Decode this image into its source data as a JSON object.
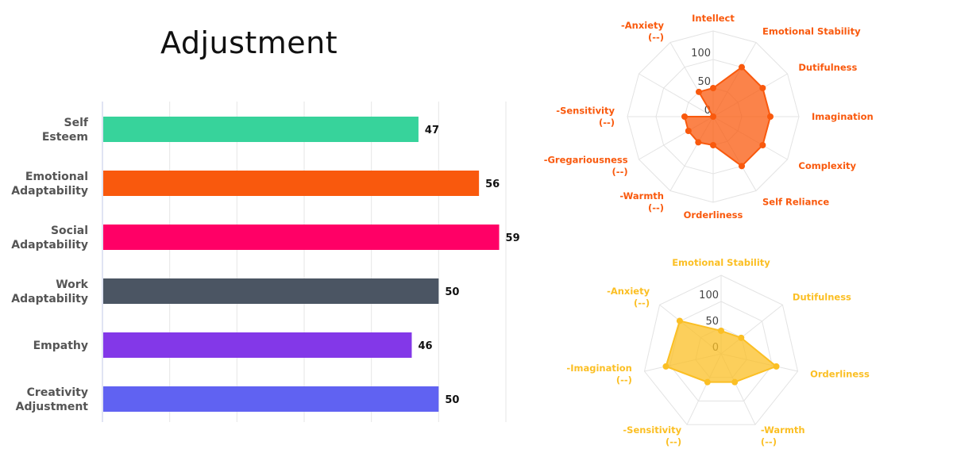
{
  "title": "Adjustment",
  "chart_data": [
    {
      "type": "bar",
      "orientation": "horizontal",
      "title": "Adjustment",
      "categories": [
        [
          "Self",
          "Esteem"
        ],
        [
          "Emotional",
          "Adaptability"
        ],
        [
          "Social",
          "Adaptability"
        ],
        [
          "Work",
          "Adaptability"
        ],
        [
          "Empathy"
        ],
        [
          "Creativity",
          "Adjustment"
        ]
      ],
      "values": [
        47,
        56,
        59,
        50,
        46,
        50
      ],
      "colors": [
        "#37d39b",
        "#f9590d",
        "#ff0066",
        "#4b5563",
        "#8338e8",
        "#6062f2"
      ],
      "xlim": [
        0,
        60
      ],
      "grid": true,
      "data_labels": true
    },
    {
      "type": "radar",
      "color": "#f9590d",
      "axes": [
        [
          "Intellect"
        ],
        [
          "Emotional Stability"
        ],
        [
          "Dutifulness"
        ],
        [
          "Imagination"
        ],
        [
          "Complexity"
        ],
        [
          "Self Reliance"
        ],
        [
          "Orderliness"
        ],
        [
          "-Warmth",
          "(--)"
        ],
        [
          "-Gregariousness",
          "(--)"
        ],
        [
          "-Sensitivity",
          "(--)"
        ],
        [
          ""
        ],
        [
          "-Anxiety",
          "(--)"
        ]
      ],
      "values": [
        50,
        100,
        100,
        100,
        100,
        100,
        50,
        52,
        50,
        50,
        0,
        50
      ],
      "range": [
        0,
        150
      ],
      "ticks": [
        "0",
        "50",
        "100"
      ]
    },
    {
      "type": "radar",
      "color": "#fbbf24",
      "axes": [
        [
          "Emotional Stability"
        ],
        [
          "Dutifulness"
        ],
        [
          "Orderliness"
        ],
        [
          "-Warmth",
          "(--)"
        ],
        [
          "-Sensitivity",
          "(--)"
        ],
        [
          "-Imagination",
          "(--)"
        ],
        [
          "-Anxiety",
          "(--)"
        ]
      ],
      "values": [
        44,
        49,
        108,
        60,
        60,
        108,
        101
      ],
      "range": [
        0,
        150
      ],
      "ticks": [
        "0",
        "50",
        "100"
      ]
    }
  ]
}
